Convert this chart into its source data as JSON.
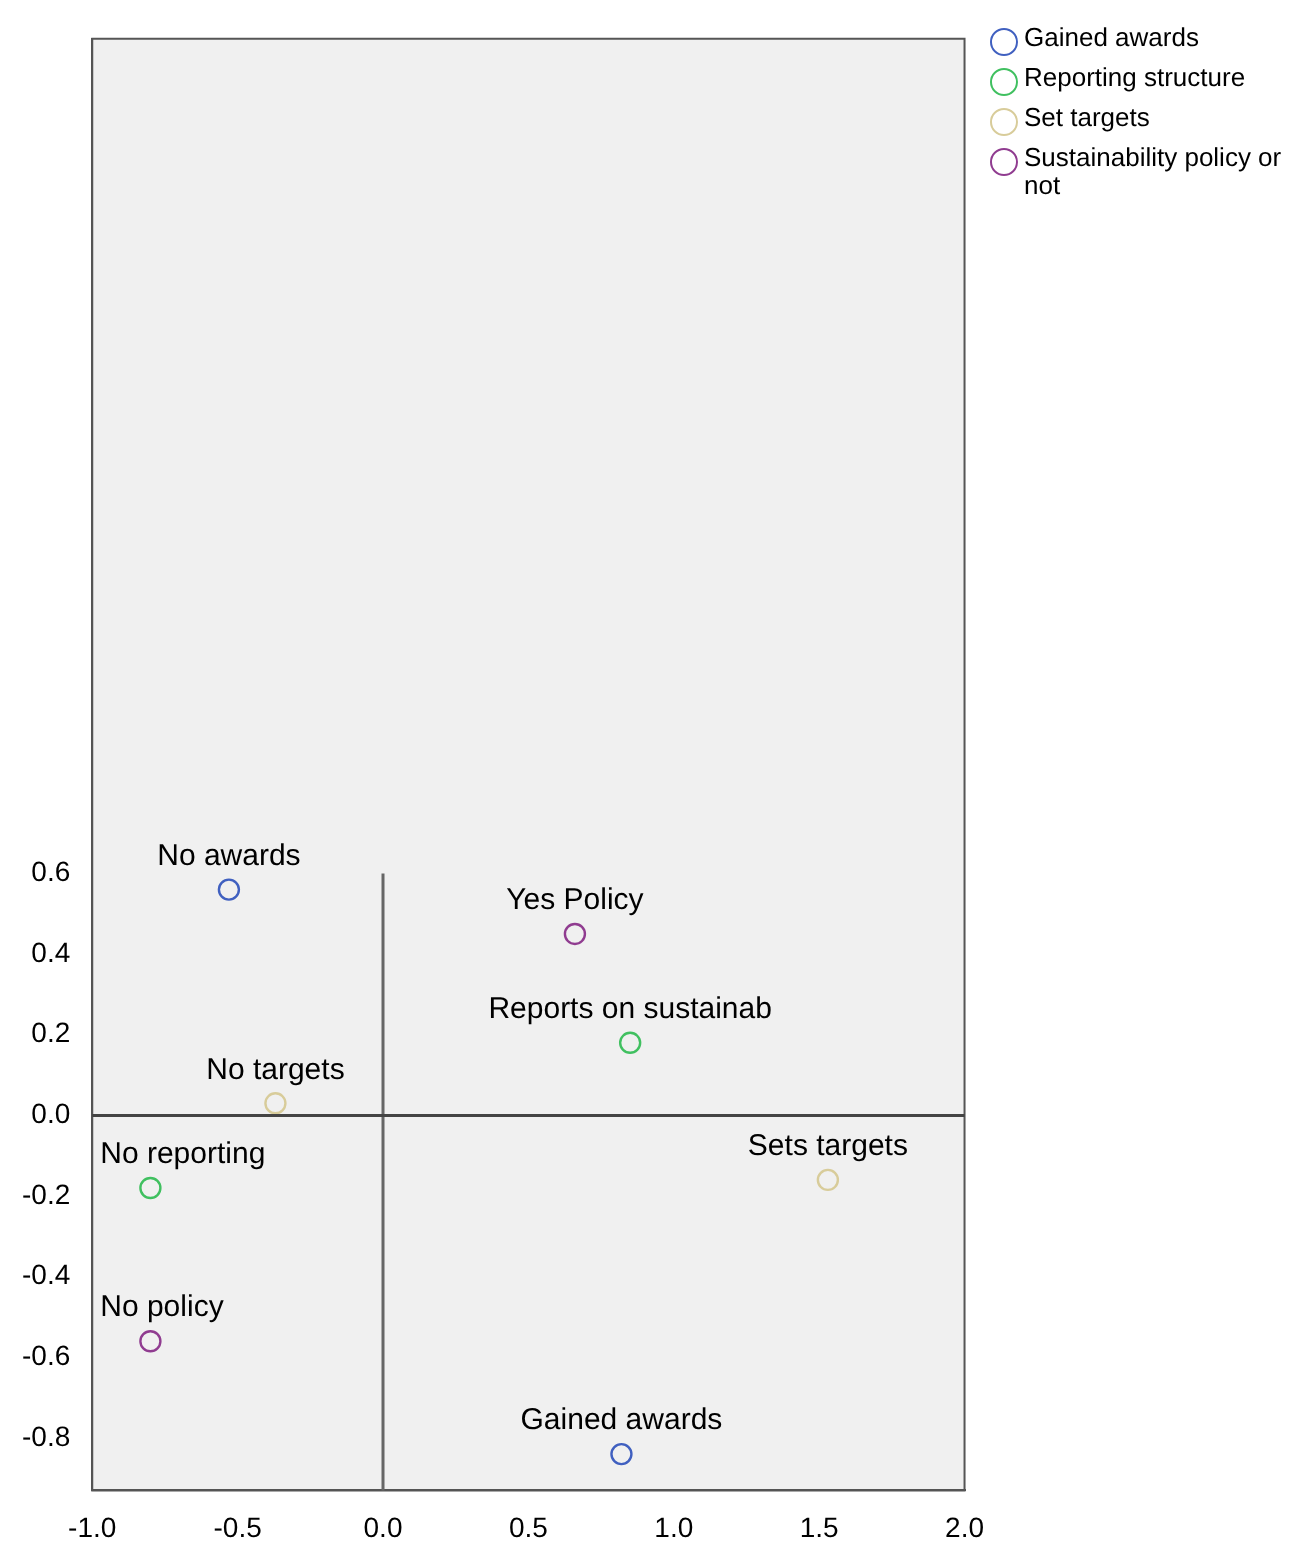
{
  "chart_data": {
    "type": "scatter",
    "marker": "circle",
    "legend": "top right",
    "grid": false,
    "xlim": [
      -1.0,
      2.0
    ],
    "xticks": [
      {
        "value": -1,
        "label": "-1.0"
      },
      {
        "value": -0.5,
        "label": "-0.5"
      },
      {
        "value": 0,
        "label": "0.0"
      },
      {
        "value": 0.5,
        "label": "0.5"
      },
      {
        "value": 1,
        "label": "1.0"
      },
      {
        "value": 1.5,
        "label": "1.5"
      },
      {
        "value": 2,
        "label": "2.0"
      }
    ],
    "ylim": [
      -0.93,
      2.67
    ],
    "yticks": [
      {
        "value": -0.8,
        "label": "-0.8"
      },
      {
        "value": -0.6,
        "label": "-0.6"
      },
      {
        "value": -0.4,
        "label": "-0.4"
      },
      {
        "value": -0.2,
        "label": "-0.2"
      },
      {
        "value": 0,
        "label": "0.0"
      },
      {
        "value": 0.2,
        "label": "0.2"
      },
      {
        "value": 0.4,
        "label": "0.4"
      },
      {
        "value": 0.6,
        "label": "0.6"
      }
    ],
    "series": [
      {
        "name": "Gained awards",
        "color": "#4060c0",
        "x": [
          -0.53,
          0.82
        ],
        "values": [
          0.56,
          -0.84
        ]
      },
      {
        "name": "Reporting structure",
        "color": "#40c060",
        "x": [
          -0.8,
          0.85
        ],
        "values": [
          -0.18,
          0.18
        ]
      },
      {
        "name": "Set targets",
        "color": "#d8cc9a",
        "x": [
          -0.37,
          1.53
        ],
        "values": [
          0.03,
          -0.16
        ]
      },
      {
        "name": "Sustainability policy or not",
        "color": "#903c90",
        "x": [
          -0.8,
          0.66
        ],
        "values": [
          -0.56,
          0.45
        ]
      }
    ],
    "ref_lines": [
      {
        "axis": "x",
        "value": 0,
        "color": "#666666"
      },
      {
        "axis": "y",
        "value": 0,
        "color": "#444444"
      }
    ],
    "annotations": [
      {
        "text": "No awards",
        "x": -0.53,
        "y": 0.56
      },
      {
        "text": "Gained awards",
        "x": 0.82,
        "y": -0.84
      },
      {
        "text": "No reporting",
        "x": -0.8,
        "y": -0.18
      },
      {
        "text": "Reports on sustainab",
        "x": 0.85,
        "y": 0.18
      },
      {
        "text": "No targets",
        "x": -0.37,
        "y": 0.03
      },
      {
        "text": "Sets targets",
        "x": 1.53,
        "y": -0.16
      },
      {
        "text": "No policy",
        "x": -0.8,
        "y": -0.56
      },
      {
        "text": "Yes Policy",
        "x": 0.66,
        "y": 0.45
      }
    ]
  }
}
